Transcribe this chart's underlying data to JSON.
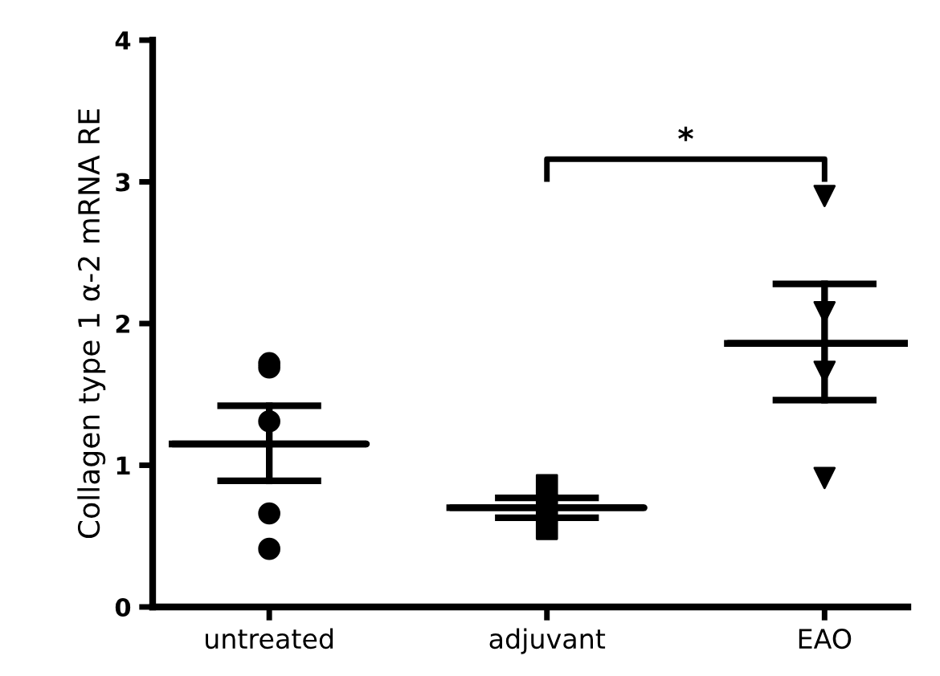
{
  "chart_data": {
    "type": "scatter",
    "ylabel": "Collagen type 1 α-2 mRNA RE",
    "categories": [
      "untreated",
      "adjuvant",
      "EAO"
    ],
    "series": [
      {
        "type": "scatter",
        "color": "#000000",
        "marker": "circle",
        "x": [
          "untreated",
          "untreated",
          "untreated",
          "untreated",
          "untreated"
        ],
        "values": [
          1.72,
          1.69,
          1.31,
          0.66,
          0.41
        ]
      },
      {
        "type": "scatter",
        "color": "#000000",
        "marker": "square",
        "x": [
          "adjuvant",
          "adjuvant",
          "adjuvant"
        ],
        "values": [
          0.86,
          0.72,
          0.55
        ]
      },
      {
        "type": "scatter",
        "color": "#000000",
        "marker": "triangle",
        "x": [
          "EAO",
          "EAO",
          "EAO",
          "EAO"
        ],
        "values": [
          2.9,
          2.08,
          1.66,
          0.91
        ]
      },
      {
        "type": "box",
        "color": "#000000",
        "boxes": [
          {
            "low": 0.89,
            "q1": 1.15,
            "median": 1.15,
            "q3": 1.15,
            "high": 1.42
          },
          {
            "low": 0.63,
            "q1": 0.7,
            "median": 0.7,
            "q3": 0.7,
            "high": 0.77
          },
          {
            "low": 1.46,
            "q1": 1.86,
            "median": 1.86,
            "q3": 1.86,
            "high": 2.28
          }
        ]
      }
    ],
    "ylim": [
      0,
      4
    ],
    "yticks": [
      0,
      1,
      2,
      3,
      4
    ],
    "grid": false,
    "legend": false,
    "annotations": [
      "*"
    ]
  }
}
